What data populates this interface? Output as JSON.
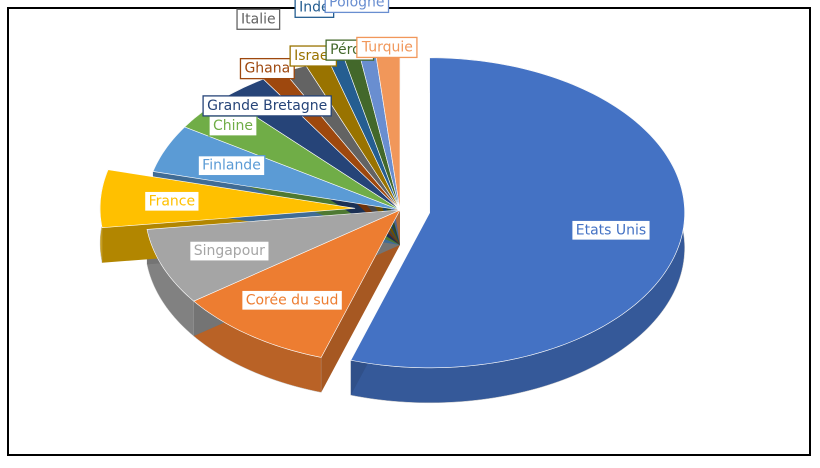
{
  "chart_data": {
    "type": "pie3d",
    "categories": [
      "Etats Unis",
      "Corée du sud",
      "Singapour",
      "France",
      "Finlande",
      "Chine",
      "Grande Bretagne",
      "Ghana",
      "Italie",
      "Israel",
      "Inde",
      "Pérou",
      "Pologne",
      "Turquie"
    ],
    "values": [
      55,
      10,
      8,
      6,
      5,
      4,
      3,
      1.5,
      1.5,
      1.5,
      1,
      1,
      1,
      1.5
    ],
    "colors": [
      "#4472c4",
      "#ed7d31",
      "#a5a5a5",
      "#ffc000",
      "#5b9bd5",
      "#70ad47",
      "#264478",
      "#9e480e",
      "#636363",
      "#997300",
      "#255e91",
      "#43682b",
      "#698ed0",
      "#f1975a"
    ],
    "exploded": [
      "Etats Unis",
      "France"
    ]
  }
}
